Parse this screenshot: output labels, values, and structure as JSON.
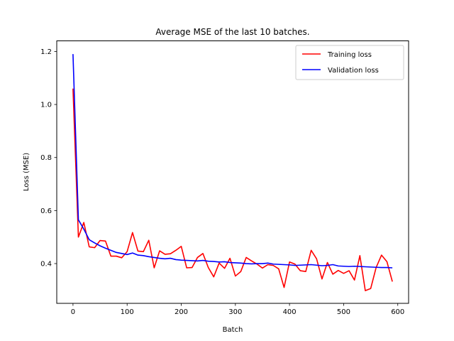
{
  "chart_data": {
    "type": "line",
    "title": "Average MSE of the last 10 batches.",
    "xlabel": "Batch",
    "ylabel": "Loss (MSE)",
    "xlim": [
      -30,
      620
    ],
    "ylim": [
      0.25,
      1.24
    ],
    "xticks": [
      0,
      100,
      200,
      300,
      400,
      500,
      600
    ],
    "yticks": [
      0.4,
      0.6,
      0.8,
      1.0,
      1.2
    ],
    "grid": false,
    "legend_position": "upper-right",
    "x": [
      0,
      10,
      20,
      30,
      40,
      50,
      60,
      70,
      80,
      90,
      100,
      110,
      120,
      130,
      140,
      150,
      160,
      170,
      180,
      190,
      200,
      210,
      220,
      230,
      240,
      250,
      260,
      270,
      280,
      290,
      300,
      310,
      320,
      330,
      340,
      350,
      360,
      370,
      380,
      390,
      400,
      410,
      420,
      430,
      440,
      450,
      460,
      470,
      480,
      490,
      500,
      510,
      520,
      530,
      540,
      550,
      560,
      570,
      580,
      590
    ],
    "series": [
      {
        "name": "Training loss",
        "color": "#ff0000",
        "values": [
          1.06,
          0.5,
          0.555,
          0.463,
          0.46,
          0.487,
          0.485,
          0.428,
          0.428,
          0.422,
          0.445,
          0.517,
          0.447,
          0.445,
          0.488,
          0.384,
          0.448,
          0.435,
          0.437,
          0.45,
          0.465,
          0.384,
          0.385,
          0.423,
          0.438,
          0.385,
          0.35,
          0.402,
          0.382,
          0.42,
          0.353,
          0.37,
          0.423,
          0.41,
          0.398,
          0.383,
          0.396,
          0.393,
          0.38,
          0.31,
          0.406,
          0.398,
          0.373,
          0.37,
          0.45,
          0.418,
          0.342,
          0.404,
          0.36,
          0.374,
          0.363,
          0.373,
          0.338,
          0.43,
          0.298,
          0.306,
          0.385,
          0.432,
          0.407,
          0.332
        ]
      },
      {
        "name": "Validation loss",
        "color": "#0000ff",
        "values": [
          1.19,
          0.565,
          0.53,
          0.49,
          0.478,
          0.467,
          0.458,
          0.45,
          0.442,
          0.438,
          0.434,
          0.44,
          0.432,
          0.43,
          0.426,
          0.423,
          0.42,
          0.418,
          0.42,
          0.415,
          0.413,
          0.412,
          0.411,
          0.41,
          0.412,
          0.409,
          0.408,
          0.406,
          0.407,
          0.404,
          0.403,
          0.402,
          0.4,
          0.399,
          0.4,
          0.4,
          0.402,
          0.398,
          0.397,
          0.396,
          0.395,
          0.393,
          0.394,
          0.395,
          0.396,
          0.394,
          0.392,
          0.393,
          0.396,
          0.391,
          0.39,
          0.389,
          0.39,
          0.389,
          0.388,
          0.387,
          0.386,
          0.385,
          0.385,
          0.384
        ]
      }
    ]
  }
}
